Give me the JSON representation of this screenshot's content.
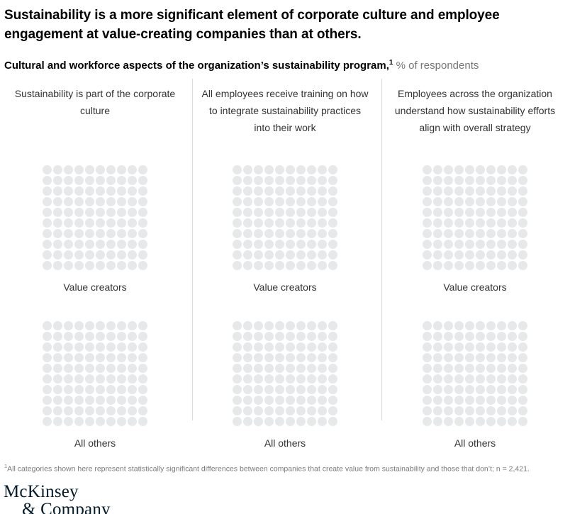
{
  "header": {
    "title": "Sustainability is a more significant element of corporate culture and employee engagement at value-creating companies than at others."
  },
  "subtitle": {
    "bold": "Cultural and workforce aspects of the organization’s sustainability program,",
    "footnote_marker": "1",
    "units": " % of respondents"
  },
  "chart_data": {
    "type": "waffle",
    "title": "Cultural and workforce aspects of the organization’s sustainability program, % of respondents",
    "grid": {
      "rows": 10,
      "cols": 10,
      "dots_per_grid": 100
    },
    "groups": [
      "Value creators",
      "All others"
    ],
    "panels": [
      {
        "category": "Sustainability is part of the corporate culture",
        "series": [
          {
            "name": "Value creators",
            "filled_dots_visible": 0
          },
          {
            "name": "All others",
            "filled_dots_visible": 0
          }
        ]
      },
      {
        "category": "All employees receive training on how to integrate sustainability practices into their work",
        "series": [
          {
            "name": "Value creators",
            "filled_dots_visible": 0
          },
          {
            "name": "All others",
            "filled_dots_visible": 0
          }
        ]
      },
      {
        "category": "Employees across the organization understand how sustainability efforts align with overall strategy",
        "series": [
          {
            "name": "Value creators",
            "filled_dots_visible": 0
          },
          {
            "name": "All others",
            "filled_dots_visible": 0
          }
        ]
      }
    ],
    "display_state": "all 100 dots in every grid shown unfilled in uniform light gray; no numeric data labels visible",
    "dot_color": "#e6e8e9",
    "legend_position": "below each grid"
  },
  "footnote": {
    "marker": "1",
    "text": "All categories shown here represent statistically significant differences between companies that create value from sustainability and those that don’t; n = 2,421."
  },
  "logo": {
    "line1": "McKinsey",
    "line2": "& Company"
  },
  "colors": {
    "title_text": "#000000",
    "header_text": "#333333",
    "muted_text": "#767676",
    "footnote_text": "#7a7a7a",
    "dot": "#e6e8e9",
    "divider": "#d9d9d9",
    "logo_navy": "#051c2c",
    "background": "#ffffff"
  }
}
